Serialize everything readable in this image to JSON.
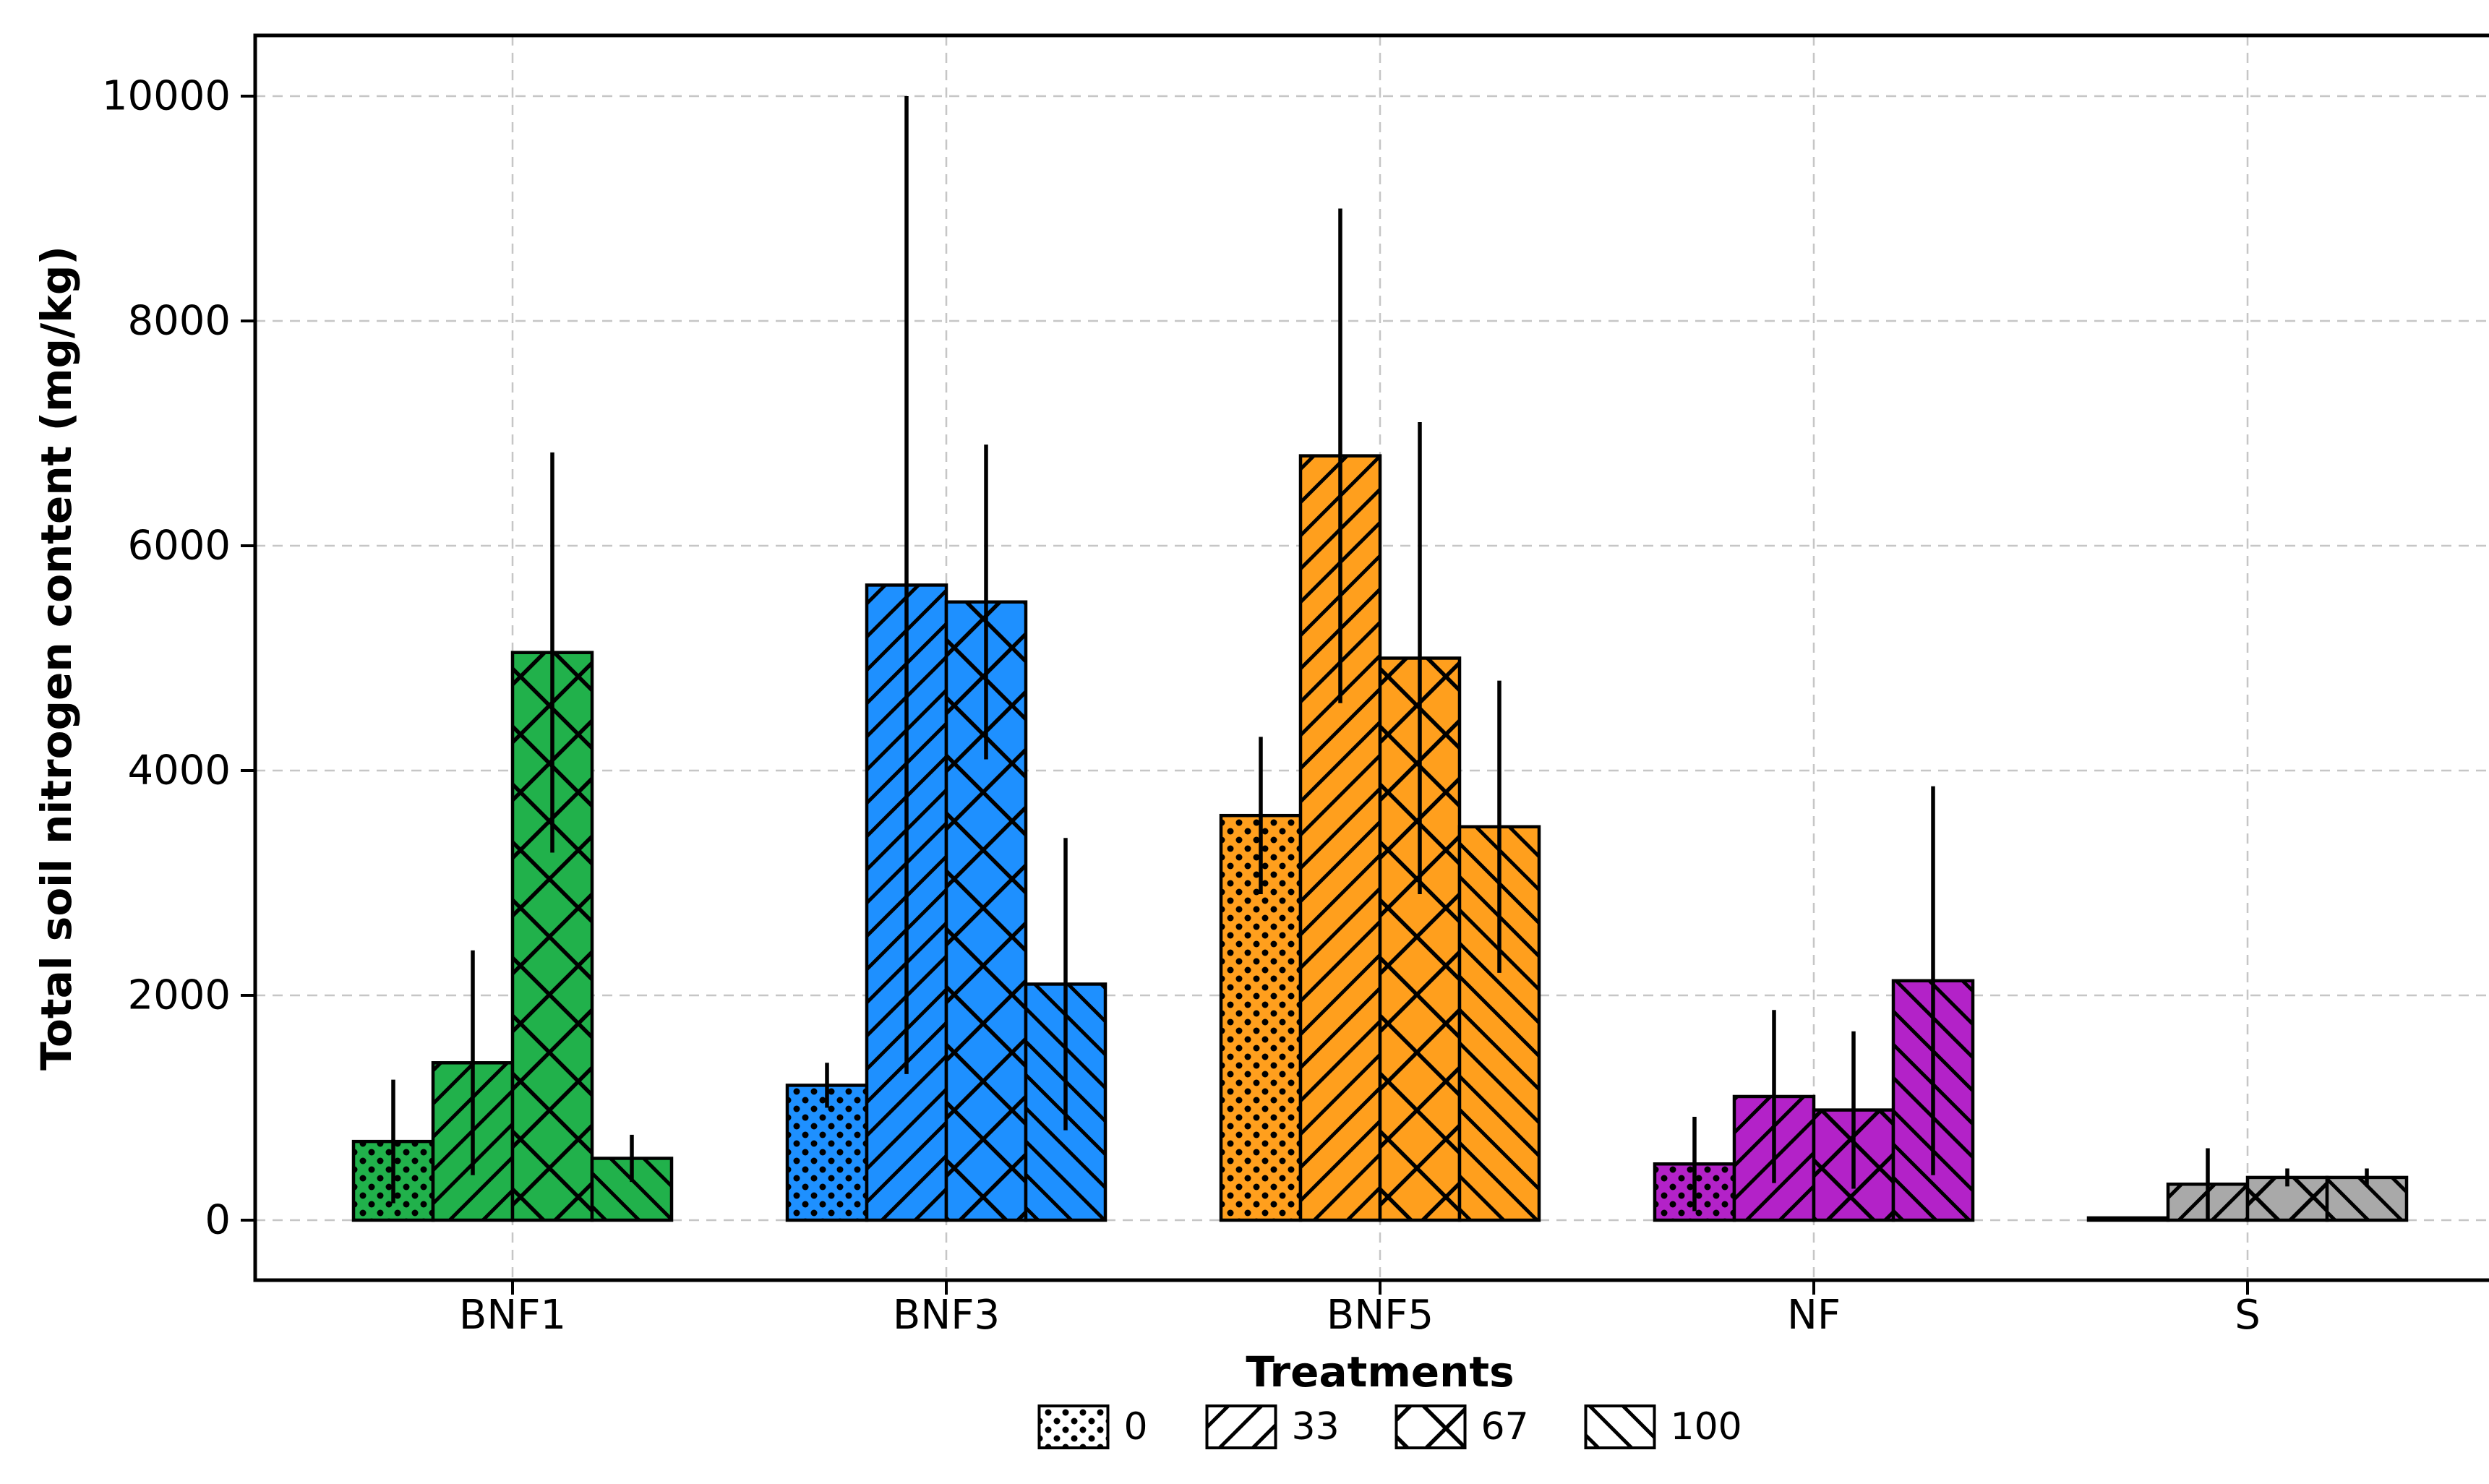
{
  "figure": {
    "background": "#ffffff",
    "ylabel": "Total soil nitrogen content (mg/kg)",
    "xlabel": "Treatments"
  },
  "chart_data": {
    "type": "bar",
    "title": "",
    "xlabel": "Treatments",
    "ylabel": "Total soil nitrogen content (mg/kg)",
    "categories": [
      "BNF1",
      "BNF3",
      "BNF5",
      "NF",
      "S"
    ],
    "group_colors": [
      "#21b14b",
      "#1e90ff",
      "#ff9f1d",
      "#b322c8",
      "#a9a9a9"
    ],
    "series": [
      {
        "name": "0",
        "hatch": "dots",
        "values": [
          700,
          1200,
          3600,
          500,
          20
        ],
        "errors": [
          550,
          200,
          700,
          420,
          0
        ]
      },
      {
        "name": "33",
        "hatch": "slash",
        "values": [
          1400,
          5650,
          6800,
          1100,
          320
        ],
        "errors": [
          1000,
          4350,
          2200,
          770,
          320
        ]
      },
      {
        "name": "67",
        "hatch": "cross",
        "values": [
          5050,
          5500,
          5000,
          980,
          380
        ],
        "errors": [
          1780,
          1400,
          2100,
          700,
          80
        ]
      },
      {
        "name": "100",
        "hatch": "backslash",
        "values": [
          550,
          2100,
          3500,
          2130,
          380
        ],
        "errors": [
          210,
          1300,
          1300,
          1730,
          80
        ]
      }
    ],
    "ylim": [
      0,
      10000
    ],
    "yticks": [
      0,
      2000,
      4000,
      6000,
      8000,
      10000
    ],
    "yticklabels": [
      "0",
      "2000",
      "4000",
      "6000",
      "8000",
      "10000"
    ],
    "grid": {
      "style": "dashed",
      "color": "#c6c6c6",
      "horizontal": true,
      "vertical": true
    },
    "legend": {
      "position": "bottom-center",
      "labels": [
        "0",
        "33",
        "67",
        "100"
      ],
      "hatches": [
        "dots",
        "slash",
        "cross",
        "backslash"
      ],
      "swatch_fill": "#ffffff"
    },
    "bar_edge_color": "#000000",
    "hatch_color": "#000000",
    "error_bar_color": "#000000"
  }
}
